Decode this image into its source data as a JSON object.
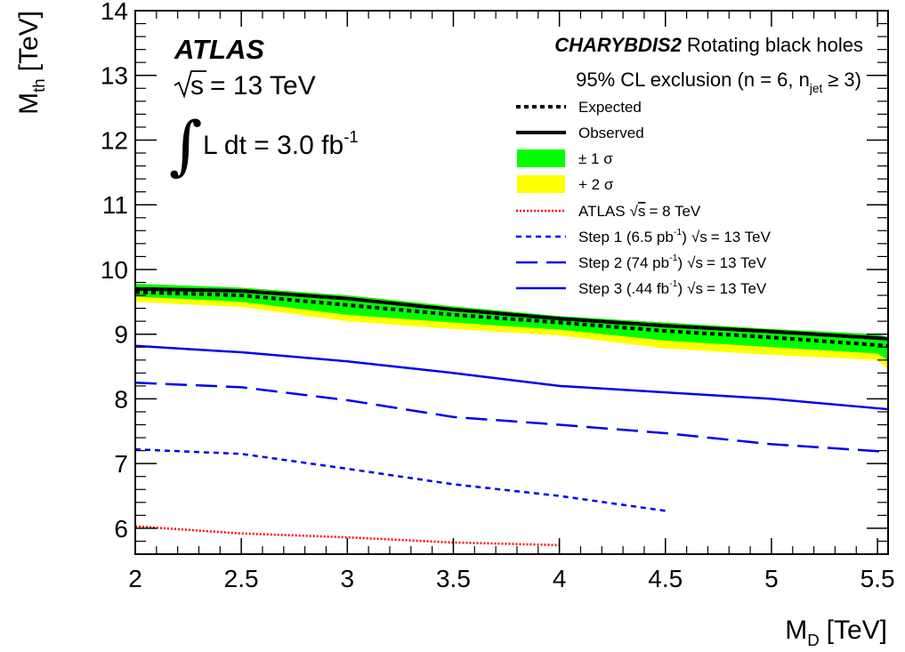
{
  "chart_data": {
    "type": "line",
    "xlabel": "M",
    "xlabel_sub": "D",
    "xlabel_unit": "[TeV]",
    "ylabel": "M",
    "ylabel_sub": "th",
    "ylabel_unit": "[TeV]",
    "xlim": [
      2,
      5.55
    ],
    "ylim": [
      5.6,
      14
    ],
    "xticks": [
      2,
      2.5,
      3,
      3.5,
      4,
      4.5,
      5,
      5.5
    ],
    "xtick_labels": [
      "2",
      "2.5",
      "3",
      "3.5",
      "4",
      "4.5",
      "5",
      "5.5"
    ],
    "yticks": [
      6,
      7,
      8,
      9,
      10,
      11,
      12,
      13,
      14
    ],
    "ytick_labels": [
      "6",
      "7",
      "8",
      "9",
      "10",
      "11",
      "12",
      "13",
      "14"
    ],
    "grid": false,
    "legend_position": "top-right",
    "annotations": {
      "experiment": "ATLAS",
      "energy": "= 13 TeV",
      "lumi": "L dt = 3.0 fb",
      "lumi_exp": "-1",
      "generator": "CHARYBDIS2",
      "model": "Rotating black holes",
      "exclusion_pre": "95% CL exclusion (n = 6, n",
      "exclusion_sub": "jet",
      "exclusion_post": "≥ 3)"
    },
    "x": [
      2,
      2.5,
      3,
      3.5,
      4,
      4.5,
      5,
      5.55
    ],
    "bands": [
      {
        "name": "+ 2 σ",
        "color": "#ffff00",
        "x": [
          2,
          2.5,
          3,
          3.5,
          4,
          4.5,
          5,
          5.5,
          5.55
        ],
        "upper": [
          9.78,
          9.72,
          9.6,
          9.43,
          9.28,
          9.18,
          9.08,
          9.0,
          8.95
        ],
        "lower": [
          9.5,
          9.42,
          9.2,
          9.08,
          8.98,
          8.78,
          8.68,
          8.6,
          8.45
        ]
      },
      {
        "name": "± 1 σ",
        "color": "#00ff00",
        "x": [
          2,
          2.5,
          3,
          3.5,
          4,
          4.5,
          5,
          5.5,
          5.55
        ],
        "upper": [
          9.78,
          9.72,
          9.6,
          9.43,
          9.28,
          9.18,
          9.08,
          9.0,
          8.95
        ],
        "lower": [
          9.58,
          9.5,
          9.3,
          9.18,
          9.07,
          8.9,
          8.8,
          8.7,
          8.6
        ]
      }
    ],
    "series": [
      {
        "name": "Expected",
        "style": "dotted-thick",
        "color": "#000000",
        "x": [
          2,
          2.5,
          3,
          3.5,
          4,
          4.5,
          5,
          5.55
        ],
        "y": [
          9.65,
          9.6,
          9.45,
          9.3,
          9.18,
          9.05,
          8.95,
          8.82
        ]
      },
      {
        "name": "Observed",
        "style": "solid-thick",
        "color": "#000000",
        "x": [
          2,
          2.5,
          3,
          3.5,
          4,
          4.5,
          5,
          5.55
        ],
        "y": [
          9.7,
          9.67,
          9.55,
          9.38,
          9.24,
          9.13,
          9.04,
          8.93
        ]
      },
      {
        "name": "ATLAS",
        "name_suffix": "= 8 TeV",
        "style": "dotted-red",
        "color": "#ff0000",
        "x": [
          2,
          2.5,
          3,
          3.5,
          4
        ],
        "y": [
          6.03,
          5.92,
          5.86,
          5.78,
          5.74
        ]
      },
      {
        "name": "Step 1 (6.5 pb",
        "name_exp": "-1",
        "name_suffix": ")",
        "energy": "= 13 TeV",
        "style": "short-dash",
        "color": "#0000ee",
        "x": [
          2,
          2.5,
          3,
          3.5,
          4,
          4.5
        ],
        "y": [
          7.22,
          7.15,
          6.92,
          6.68,
          6.5,
          6.27
        ]
      },
      {
        "name": "Step 2 (74 pb",
        "name_exp": "-1",
        "name_suffix": ")",
        "energy": "= 13 TeV",
        "style": "long-dash",
        "color": "#0000ee",
        "x": [
          2,
          2.5,
          3,
          3.5,
          4,
          4.5,
          5,
          5.55
        ],
        "y": [
          8.25,
          8.18,
          7.98,
          7.72,
          7.6,
          7.47,
          7.3,
          7.18
        ]
      },
      {
        "name": "Step 3 (.44 fb",
        "name_exp": "-1",
        "name_suffix": ")",
        "energy": "= 13 TeV",
        "style": "solid-thin",
        "color": "#0000ee",
        "x": [
          2,
          2.5,
          3,
          3.5,
          4,
          4.5,
          5,
          5.55
        ],
        "y": [
          8.82,
          8.72,
          8.58,
          8.4,
          8.2,
          8.1,
          8.0,
          7.84
        ]
      }
    ]
  }
}
